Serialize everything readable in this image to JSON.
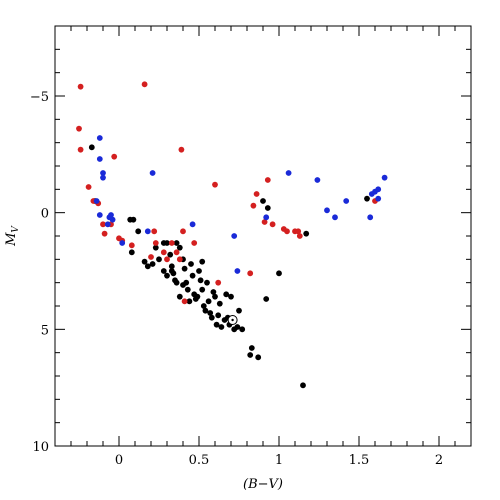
{
  "chart_data": {
    "type": "scatter",
    "xlabel": "(B−V)",
    "ylabel": "M",
    "ylabel_subscript": "V",
    "xlim": [
      -0.4,
      2.2
    ],
    "ylim": [
      10,
      -8
    ],
    "x_ticks": [
      0,
      0.5,
      1,
      1.5,
      2
    ],
    "x_tick_labels": [
      "0",
      "0.5",
      "1",
      "1.5",
      "2"
    ],
    "y_ticks": [
      -5,
      0,
      5,
      10
    ],
    "y_tick_labels": [
      "−5",
      "0",
      "5",
      "10"
    ],
    "grid": false,
    "legend": "none",
    "series": [
      {
        "color": "#000000",
        "points": [
          [
            -0.17,
            -2.8
          ],
          [
            -0.15,
            -0.5
          ],
          [
            0.07,
            0.3
          ],
          [
            0.09,
            0.3
          ],
          [
            0.12,
            0.8
          ],
          [
            0.08,
            1.7
          ],
          [
            0.16,
            2.1
          ],
          [
            0.18,
            2.3
          ],
          [
            0.21,
            2.2
          ],
          [
            0.23,
            1.5
          ],
          [
            0.25,
            2.0
          ],
          [
            0.28,
            2.5
          ],
          [
            0.3,
            1.3
          ],
          [
            0.32,
            1.8
          ],
          [
            0.33,
            2.3
          ],
          [
            0.34,
            2.6
          ],
          [
            0.35,
            2.9
          ],
          [
            0.3,
            2.7
          ],
          [
            0.36,
            1.3
          ],
          [
            0.38,
            1.5
          ],
          [
            0.4,
            2.0
          ],
          [
            0.41,
            2.4
          ],
          [
            0.42,
            3.0
          ],
          [
            0.43,
            3.3
          ],
          [
            0.45,
            2.2
          ],
          [
            0.46,
            2.7
          ],
          [
            0.47,
            3.5
          ],
          [
            0.48,
            3.7
          ],
          [
            0.5,
            2.5
          ],
          [
            0.51,
            2.9
          ],
          [
            0.52,
            3.3
          ],
          [
            0.53,
            4.0
          ],
          [
            0.54,
            4.2
          ],
          [
            0.55,
            3.0
          ],
          [
            0.56,
            3.8
          ],
          [
            0.57,
            4.3
          ],
          [
            0.58,
            4.5
          ],
          [
            0.59,
            3.4
          ],
          [
            0.6,
            3.6
          ],
          [
            0.61,
            4.8
          ],
          [
            0.62,
            4.4
          ],
          [
            0.63,
            3.9
          ],
          [
            0.64,
            4.9
          ],
          [
            0.66,
            4.6
          ],
          [
            0.67,
            3.5
          ],
          [
            0.68,
            4.5
          ],
          [
            0.69,
            4.8
          ],
          [
            0.7,
            3.6
          ],
          [
            0.72,
            5.0
          ],
          [
            0.74,
            4.9
          ],
          [
            0.75,
            4.2
          ],
          [
            0.77,
            5.0
          ],
          [
            0.38,
            3.6
          ],
          [
            0.36,
            3.0
          ],
          [
            0.44,
            3.8
          ],
          [
            0.49,
            3.6
          ],
          [
            0.4,
            3.1
          ],
          [
            0.33,
            2.5
          ],
          [
            0.52,
            2.1
          ],
          [
            0.28,
            1.3
          ],
          [
            0.82,
            6.1
          ],
          [
            0.83,
            5.8
          ],
          [
            0.87,
            6.2
          ],
          [
            0.92,
            3.7
          ],
          [
            1.0,
            2.6
          ],
          [
            1.15,
            7.4
          ],
          [
            1.17,
            0.9
          ],
          [
            0.9,
            -0.5
          ],
          [
            0.93,
            -0.2
          ],
          [
            1.55,
            -0.6
          ]
        ]
      },
      {
        "color": "#d42020",
        "points": [
          [
            -0.24,
            -5.4
          ],
          [
            -0.25,
            -3.6
          ],
          [
            -0.24,
            -2.7
          ],
          [
            -0.19,
            -1.1
          ],
          [
            -0.16,
            -0.5
          ],
          [
            -0.13,
            -0.4
          ],
          [
            -0.1,
            0.5
          ],
          [
            -0.09,
            0.9
          ],
          [
            -0.05,
            0.5
          ],
          [
            -0.03,
            -2.4
          ],
          [
            0.0,
            1.1
          ],
          [
            0.02,
            1.2
          ],
          [
            0.08,
            1.4
          ],
          [
            0.16,
            -5.5
          ],
          [
            0.2,
            1.9
          ],
          [
            0.22,
            0.8
          ],
          [
            0.23,
            1.3
          ],
          [
            0.28,
            1.7
          ],
          [
            0.3,
            2.0
          ],
          [
            0.33,
            1.3
          ],
          [
            0.36,
            1.7
          ],
          [
            0.38,
            2.0
          ],
          [
            0.39,
            -2.7
          ],
          [
            0.4,
            0.8
          ],
          [
            0.41,
            3.8
          ],
          [
            0.47,
            1.3
          ],
          [
            0.6,
            -1.2
          ],
          [
            0.62,
            3.0
          ],
          [
            0.82,
            2.6
          ],
          [
            0.84,
            -0.3
          ],
          [
            0.86,
            -0.8
          ],
          [
            0.91,
            0.4
          ],
          [
            0.93,
            -1.4
          ],
          [
            0.96,
            0.5
          ],
          [
            1.03,
            0.7
          ],
          [
            1.05,
            0.8
          ],
          [
            1.1,
            0.8
          ],
          [
            1.12,
            0.8
          ],
          [
            1.13,
            1.0
          ],
          [
            1.6,
            -0.5
          ]
        ]
      },
      {
        "color": "#1a2ad8",
        "points": [
          [
            -0.14,
            -0.5
          ],
          [
            -0.12,
            0.1
          ],
          [
            -0.12,
            -3.2
          ],
          [
            -0.12,
            -2.3
          ],
          [
            -0.1,
            -1.7
          ],
          [
            -0.1,
            -1.5
          ],
          [
            -0.07,
            0.5
          ],
          [
            -0.06,
            0.2
          ],
          [
            -0.05,
            0.1
          ],
          [
            -0.04,
            0.3
          ],
          [
            0.02,
            1.3
          ],
          [
            0.18,
            0.8
          ],
          [
            0.21,
            -1.7
          ],
          [
            0.46,
            0.5
          ],
          [
            0.72,
            1.0
          ],
          [
            0.74,
            2.5
          ],
          [
            0.92,
            0.2
          ],
          [
            1.06,
            -1.7
          ],
          [
            1.24,
            -1.4
          ],
          [
            1.3,
            -0.1
          ],
          [
            1.35,
            0.2
          ],
          [
            1.42,
            -0.5
          ],
          [
            1.57,
            0.2
          ],
          [
            1.58,
            -0.8
          ],
          [
            1.6,
            -0.9
          ],
          [
            1.62,
            -0.6
          ],
          [
            1.62,
            -1.0
          ],
          [
            1.66,
            -1.5
          ]
        ]
      }
    ],
    "annotations": [
      {
        "type": "sun-symbol",
        "x": 0.71,
        "y": 4.6
      }
    ]
  }
}
